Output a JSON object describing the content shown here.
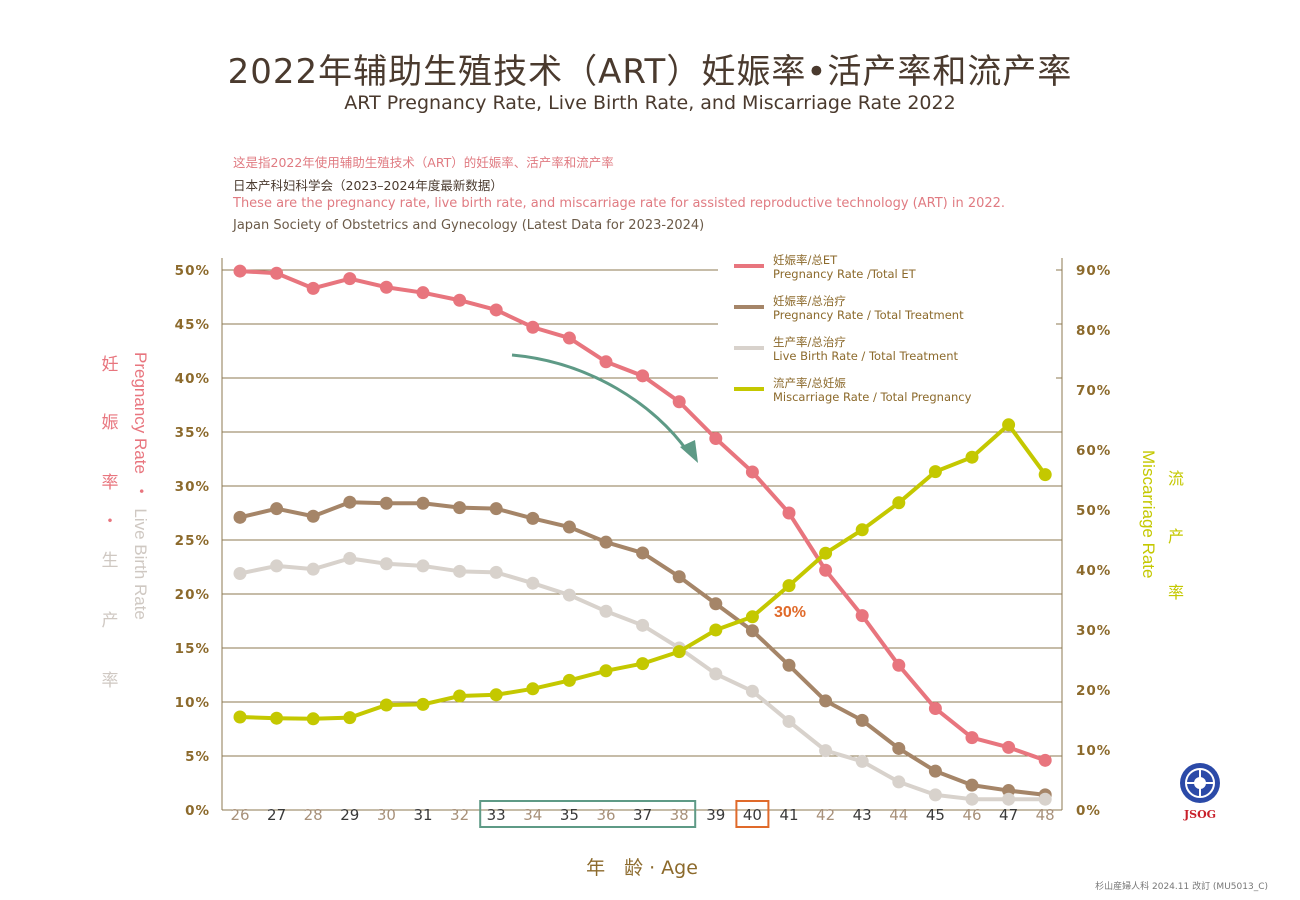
{
  "header": {
    "title_cn": "2022年辅助生殖技术（ART）妊娠率•活产率和流产率",
    "title_en": "ART Pregnancy Rate, Live Birth Rate, and Miscarriage Rate 2022"
  },
  "description": {
    "line1": "这是指2022年使用辅助生殖技术（ART）的妊娠率、活产率和流产率",
    "line2": "日本产科妇科学会（2023–2024年度最新数据）",
    "line3": "These are the pregnancy rate, live birth rate, and miscarriage rate for assisted reproductive technology (ART) in 2022.",
    "line4": "Japan Society of Obstetrics and Gynecology (Latest Data for 2023-2024)"
  },
  "footer": {
    "note": "杉山産婦人科  2024.11 改訂 (MU5013_C)"
  },
  "logo": {
    "text": "JSOG"
  },
  "colors": {
    "pink": "#e8757e",
    "brown": "#a58568",
    "light": "#d8d2cc",
    "yellow": "#c4c800",
    "grid": "#8c7a52",
    "axis_text": "#8c6a2c",
    "arrow": "#5e9a86",
    "highlight": "#e06a2a"
  },
  "chart_data": {
    "type": "line",
    "x": [
      26,
      27,
      28,
      29,
      30,
      31,
      32,
      33,
      34,
      35,
      36,
      37,
      38,
      39,
      40,
      41,
      42,
      43,
      44,
      45,
      46,
      47,
      48
    ],
    "xlabel": "年　龄 · Age",
    "left_axis": {
      "label_cn": [
        "妊",
        "娠",
        "率",
        "・",
        "生",
        "产",
        "率"
      ],
      "label_en_part1": "Pregnancy Rate",
      "label_en_sep": "・",
      "label_en_part2": "Live Birth Rate",
      "ticks": [
        "0%",
        "5%",
        "10%",
        "15%",
        "20%",
        "25%",
        "30%",
        "35%",
        "40%",
        "45%",
        "50%"
      ],
      "range": [
        0,
        50
      ]
    },
    "right_axis": {
      "label_cn": [
        "流",
        "产",
        "率"
      ],
      "label_en": "Miscarriage Rate",
      "ticks": [
        "0%",
        "10%",
        "20%",
        "30%",
        "40%",
        "50%",
        "60%",
        "70%",
        "80%",
        "90%"
      ],
      "range": [
        0,
        90
      ]
    },
    "series": [
      {
        "name": "妊娠率/总ET",
        "name_en": "Pregnancy Rate /Total ET",
        "axis": "left",
        "color": "#e8757e",
        "values": [
          49.9,
          49.7,
          48.3,
          49.2,
          48.4,
          47.9,
          47.2,
          46.3,
          44.7,
          43.7,
          41.5,
          40.2,
          37.8,
          34.4,
          31.3,
          27.5,
          22.2,
          18.0,
          13.4,
          9.4,
          6.7,
          5.8,
          4.6
        ]
      },
      {
        "name": "妊娠率/总治疗",
        "name_en": "Pregnancy Rate / Total Treatment",
        "axis": "left",
        "color": "#a58568",
        "values": [
          27.1,
          27.9,
          27.2,
          28.5,
          28.4,
          28.4,
          28.0,
          27.9,
          27.0,
          26.2,
          24.8,
          23.8,
          21.6,
          19.1,
          16.6,
          13.4,
          10.1,
          8.3,
          5.7,
          3.6,
          2.3,
          1.8,
          1.4
        ]
      },
      {
        "name": "生产率/总治疗",
        "name_en": "Live Birth Rate / Total Treatment",
        "axis": "left",
        "color": "#d8d2cc",
        "values": [
          21.9,
          22.6,
          22.3,
          23.3,
          22.8,
          22.6,
          22.1,
          22.0,
          21.0,
          19.9,
          18.4,
          17.1,
          15.0,
          12.6,
          11.0,
          8.2,
          5.5,
          4.5,
          2.6,
          1.4,
          1.0,
          1.0,
          1.0
        ]
      },
      {
        "name": "流产率/总妊娠",
        "name_en": "Miscarriage Rate / Total Pregnancy",
        "axis": "right",
        "color": "#c4c800",
        "values": [
          15.5,
          15.3,
          15.2,
          15.4,
          17.5,
          17.6,
          19.0,
          19.2,
          20.2,
          21.6,
          23.2,
          24.4,
          26.4,
          30.0,
          32.2,
          37.4,
          42.8,
          46.7,
          51.2,
          56.4,
          58.8,
          64.2,
          55.9
        ]
      }
    ],
    "annotations": {
      "highlight_label": "30%",
      "boxed_ages_green": [
        33,
        38
      ],
      "boxed_age_orange": 40
    }
  }
}
